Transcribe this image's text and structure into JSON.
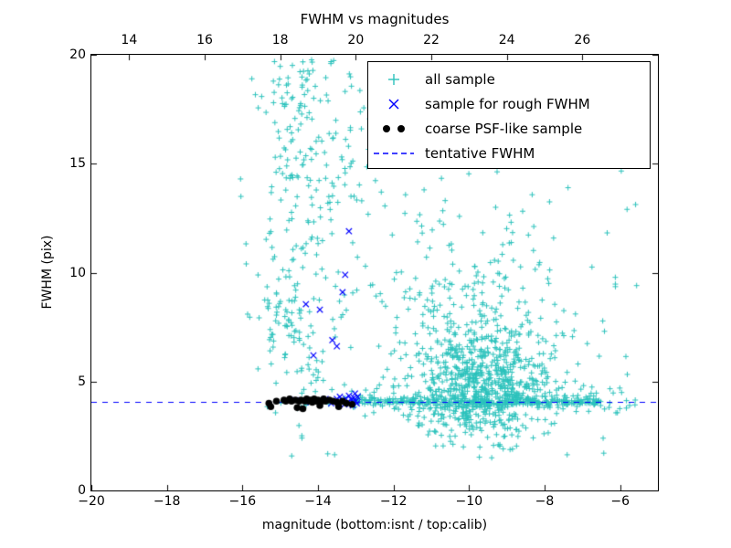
{
  "chart_data": {
    "type": "scatter",
    "title": "FWHM vs magnitudes",
    "xlabel": "magnitude (bottom:isnt / top:calib)",
    "ylabel": "FWHM (pix)",
    "xlim": [
      -20,
      -5
    ],
    "ylim": [
      0,
      20
    ],
    "grid": false,
    "legend_position": "upper right",
    "x_ticks": [
      -20,
      -18,
      -16,
      -14,
      -12,
      -10,
      -8,
      -6
    ],
    "x_tick_labels": [
      "−20",
      "−18",
      "−16",
      "−14",
      "−12",
      "−10",
      "−8",
      "−6"
    ],
    "y_ticks": [
      0,
      5,
      10,
      15,
      20
    ],
    "y_tick_labels": [
      "0",
      "5",
      "10",
      "15",
      "20"
    ],
    "top_axis": {
      "offset": 33,
      "ticks": [
        14,
        16,
        18,
        20,
        22,
        24,
        26
      ],
      "tick_labels": [
        "14",
        "16",
        "18",
        "20",
        "22",
        "24",
        "26"
      ]
    },
    "tentative_fwhm": 4.07,
    "seed": 42,
    "colors": {
      "all_sample": "#2cc2bc",
      "rough_fwhm": "#0000ff",
      "coarse_psf": "#000000",
      "tentative_fwhm": "#0000ff",
      "axes": "#000000"
    },
    "legend": [
      {
        "label": "all sample",
        "marker": "plus"
      },
      {
        "label": "sample for rough FWHM",
        "marker": "x"
      },
      {
        "label": "coarse PSF-like sample",
        "marker": "dots"
      },
      {
        "label": "tentative FWHM",
        "marker": "dashed-line"
      }
    ],
    "series": {
      "all_sample": {
        "marker": "plus",
        "approximate_count": 1730,
        "clusters": [
          {
            "n": 620,
            "x": {
              "dist": "gauss",
              "mu": -9.7,
              "sigma": 0.9
            },
            "y": {
              "dist": "gauss",
              "mu": 4.9,
              "sigma": 1.3
            },
            "clip": {
              "xmin": -12.6,
              "xmax": -5.9,
              "ymin": 1.9,
              "ymax": 19.5
            }
          },
          {
            "n": 270,
            "x": {
              "dist": "gauss",
              "mu": -9.9,
              "sigma": 1.35
            },
            "y": {
              "dist": "gauss",
              "mu": 7.2,
              "sigma": 3.0
            },
            "clip": {
              "xmin": -13.4,
              "xmax": -6.1,
              "ymin": 2.4,
              "ymax": 19.6
            }
          },
          {
            "n": 310,
            "x": {
              "dist": "uniform",
              "min": -13.15,
              "max": -6.5
            },
            "y": {
              "dist": "gauss",
              "mu": 4.07,
              "sigma": 0.12
            }
          },
          {
            "n": 80,
            "x": {
              "dist": "uniform",
              "min": -13.0,
              "max": -7.0
            },
            "y": {
              "dist": "gauss",
              "mu": 4.1,
              "sigma": 0.5
            },
            "clip": {
              "ymin": 2.2,
              "ymax": 6.5
            }
          },
          {
            "n": 130,
            "x": {
              "dist": "gauss",
              "mu": -14.3,
              "sigma": 0.55
            },
            "y": {
              "dist": "uniform",
              "min": 3.8,
              "max": 19.8
            },
            "clip": {
              "xmin": -15.6,
              "xmax": -13.2
            }
          },
          {
            "n": 60,
            "x": {
              "dist": "gauss",
              "mu": -14.9,
              "sigma": 0.35
            },
            "y": {
              "dist": "gauss",
              "mu": 8.0,
              "sigma": 1.1
            }
          },
          {
            "n": 85,
            "x": {
              "dist": "uniform",
              "min": -15.2,
              "max": -12.5
            },
            "y": {
              "dist": "uniform",
              "min": 13.0,
              "max": 19.8
            }
          },
          {
            "n": 125,
            "x": {
              "dist": "uniform",
              "min": -16.1,
              "max": -5.5
            },
            "y": {
              "dist": "uniform",
              "min": 1.5,
              "max": 19.8
            }
          },
          {
            "n": 35,
            "x": {
              "dist": "uniform",
              "min": -8.0,
              "max": -5.6
            },
            "y": {
              "dist": "gauss",
              "mu": 4.1,
              "sigma": 0.4
            }
          }
        ],
        "extra_points": [
          [
            -16.05,
            14.3
          ],
          [
            -15.9,
            10.4
          ],
          [
            -15.75,
            18.9
          ],
          [
            -9.4,
            1.5
          ],
          [
            -8.85,
            1.9
          ],
          [
            -10.15,
            2.0
          ],
          [
            -6.45,
            2.4
          ],
          [
            -5.75,
            3.9
          ],
          [
            -5.6,
            4.15
          ]
        ]
      },
      "rough_fwhm": {
        "marker": "x",
        "points": [
          [
            -14.32,
            8.55
          ],
          [
            -13.95,
            8.3
          ],
          [
            -14.12,
            6.2
          ],
          [
            -13.62,
            6.9
          ],
          [
            -13.5,
            6.62
          ],
          [
            -13.35,
            9.1
          ],
          [
            -13.28,
            9.9
          ],
          [
            -13.18,
            11.9
          ],
          [
            -14.6,
            4.15
          ],
          [
            -14.2,
            4.05
          ],
          [
            -13.8,
            4.2
          ],
          [
            -13.65,
            4.0
          ],
          [
            -13.5,
            4.2
          ],
          [
            -13.45,
            4.0
          ],
          [
            -13.42,
            4.3
          ],
          [
            -13.35,
            4.12
          ],
          [
            -13.3,
            3.95
          ],
          [
            -13.27,
            4.22
          ],
          [
            -13.22,
            4.05
          ],
          [
            -13.18,
            4.35
          ],
          [
            -13.15,
            4.0
          ],
          [
            -13.12,
            4.18
          ],
          [
            -13.08,
            3.9
          ],
          [
            -13.05,
            4.25
          ],
          [
            -13.02,
            4.45
          ],
          [
            -13.0,
            4.1
          ],
          [
            -12.97,
            4.0
          ],
          [
            -12.95,
            4.3
          ]
        ]
      },
      "coarse_psf": {
        "marker": "dot",
        "points": [
          [
            -15.3,
            4.0
          ],
          [
            -15.25,
            3.85
          ],
          [
            -15.1,
            4.1
          ],
          [
            -14.9,
            4.15
          ],
          [
            -14.85,
            4.1
          ],
          [
            -14.75,
            4.2
          ],
          [
            -14.7,
            4.1
          ],
          [
            -14.6,
            4.15
          ],
          [
            -14.55,
            3.8
          ],
          [
            -14.5,
            4.1
          ],
          [
            -14.45,
            4.15
          ],
          [
            -14.4,
            3.75
          ],
          [
            -14.35,
            4.1
          ],
          [
            -14.3,
            4.2
          ],
          [
            -14.25,
            4.1
          ],
          [
            -14.2,
            4.15
          ],
          [
            -14.15,
            4.05
          ],
          [
            -14.1,
            4.2
          ],
          [
            -14.05,
            4.1
          ],
          [
            -14.0,
            4.15
          ],
          [
            -13.95,
            3.9
          ],
          [
            -13.9,
            4.1
          ],
          [
            -13.85,
            4.2
          ],
          [
            -13.8,
            4.1
          ],
          [
            -13.7,
            4.15
          ],
          [
            -13.6,
            4.1
          ],
          [
            -13.5,
            4.05
          ],
          [
            -13.45,
            3.85
          ],
          [
            -13.35,
            4.1
          ],
          [
            -13.25,
            4.0
          ],
          [
            -13.1,
            3.95
          ]
        ]
      }
    }
  }
}
